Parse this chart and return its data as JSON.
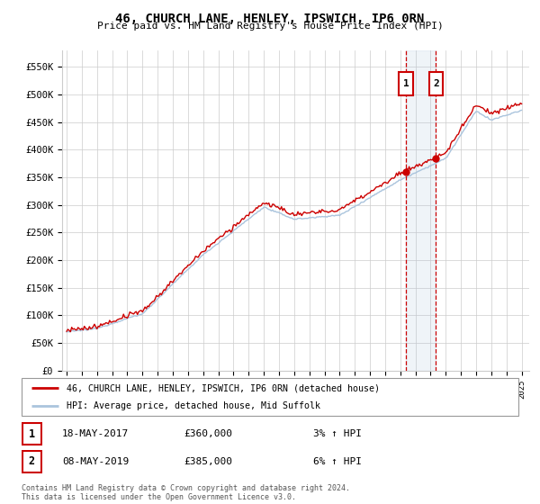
{
  "title": "46, CHURCH LANE, HENLEY, IPSWICH, IP6 0RN",
  "subtitle": "Price paid vs. HM Land Registry's House Price Index (HPI)",
  "ylim": [
    0,
    580000
  ],
  "yticks": [
    0,
    50000,
    100000,
    150000,
    200000,
    250000,
    300000,
    350000,
    400000,
    450000,
    500000,
    550000
  ],
  "ytick_labels": [
    "£0",
    "£50K",
    "£100K",
    "£150K",
    "£200K",
    "£250K",
    "£300K",
    "£350K",
    "£400K",
    "£450K",
    "£500K",
    "£550K"
  ],
  "xlim_start": 1994.7,
  "xlim_end": 2025.5,
  "grid_color": "#cccccc",
  "hpi_color": "#aac4dd",
  "price_color": "#cc0000",
  "marker1_date": "18-MAY-2017",
  "marker1_price": 360000,
  "marker1_pct": "3%",
  "marker1_year": 2017.37,
  "marker2_date": "08-MAY-2019",
  "marker2_price": 385000,
  "marker2_pct": "6%",
  "marker2_year": 2019.35,
  "legend_label1": "46, CHURCH LANE, HENLEY, IPSWICH, IP6 0RN (detached house)",
  "legend_label2": "HPI: Average price, detached house, Mid Suffolk",
  "footnote": "Contains HM Land Registry data © Crown copyright and database right 2024.\nThis data is licensed under the Open Government Licence v3.0."
}
